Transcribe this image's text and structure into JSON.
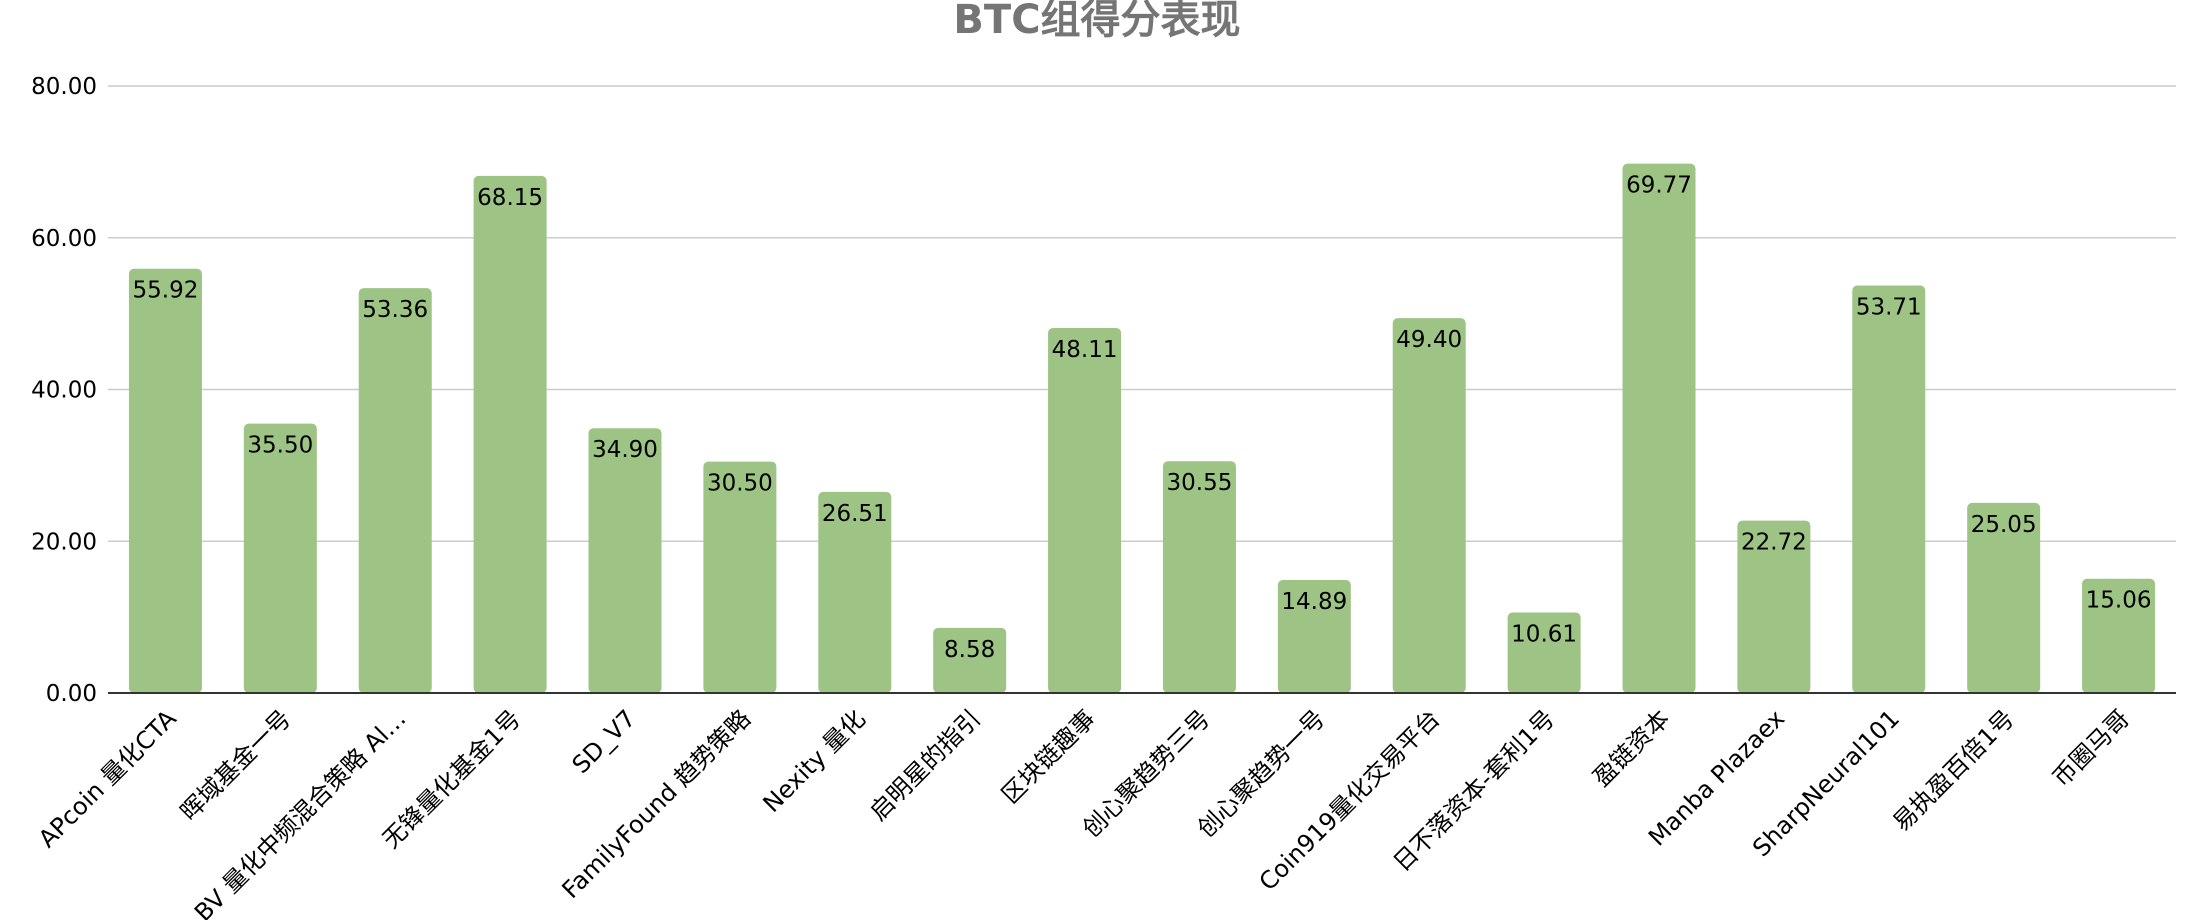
{
  "chart_data": {
    "type": "bar",
    "title": "BTC组得分表现",
    "xlabel": "",
    "ylabel": "",
    "ylim": [
      0,
      80
    ],
    "yticks": [
      "0.00",
      "20.00",
      "40.00",
      "60.00",
      "80.00"
    ],
    "grid": true,
    "color": "#9dc385",
    "categories": [
      "APcoin 量化CTA",
      "晖域基金一号",
      "BV 量化中频混合策略 Al…",
      "无锋量化基金1号",
      "SD_V7",
      "FamilyFound 趋势策略",
      "Nexity 量化",
      "启明星的指引",
      "区块链趣事",
      "创心聚趋势三号",
      "创心聚趋势一号",
      "Coin919量化交易平台",
      "日不落资本-套利1号",
      "盈链资本",
      "Manba Plazaex",
      "SharpNeural101",
      "易执盈百倍1号",
      "币圈马哥"
    ],
    "values": [
      55.92,
      35.5,
      53.36,
      68.15,
      34.9,
      30.5,
      26.51,
      8.58,
      48.11,
      30.55,
      14.89,
      49.4,
      10.61,
      69.77,
      22.72,
      53.71,
      25.05,
      15.06
    ],
    "data_labels": [
      "55.92",
      "35.50",
      "53.36",
      "68.15",
      "34.90",
      "30.50",
      "26.51",
      "8.58",
      "48.11",
      "30.55",
      "14.89",
      "49.40",
      "10.61",
      "69.77",
      "22.72",
      "53.71",
      "25.05",
      "15.06"
    ]
  }
}
